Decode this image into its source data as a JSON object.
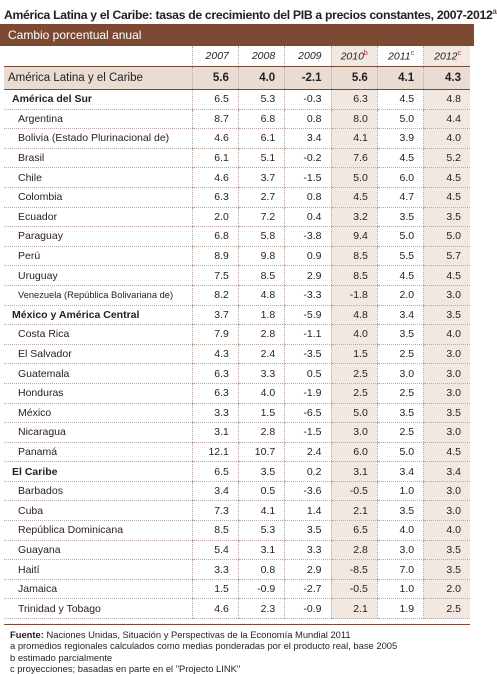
{
  "title": "América Latina y el Caribe: tasas de crecimiento del PIB a precios constantes, 2007-2012",
  "title_sup": "a",
  "banner": "Cambio porcentual anual",
  "columns": [
    {
      "year": "2007",
      "sup": ""
    },
    {
      "year": "2008",
      "sup": ""
    },
    {
      "year": "2009",
      "sup": ""
    },
    {
      "year": "2010",
      "sup": "b"
    },
    {
      "year": "2011",
      "sup": "c"
    },
    {
      "year": "2012",
      "sup": "c"
    }
  ],
  "rows": [
    {
      "kind": "total",
      "label": "América Latina y el Caribe",
      "values": [
        "5.6",
        "4.0",
        "-2.1",
        "5.6",
        "4.1",
        "4.3"
      ]
    },
    {
      "kind": "sub",
      "label": "América del Sur",
      "values": [
        "6.5",
        "5.3",
        "-0.3",
        "6.3",
        "4.5",
        "4.8"
      ]
    },
    {
      "kind": "row",
      "label": "Argentina",
      "values": [
        "8.7",
        "6.8",
        "0.8",
        "8.0",
        "5.0",
        "4.4"
      ]
    },
    {
      "kind": "row",
      "label": "Bolivia (Estado Plurinacional de)",
      "values": [
        "4.6",
        "6.1",
        "3.4",
        "4.1",
        "3.9",
        "4.0"
      ]
    },
    {
      "kind": "row",
      "label": "Brasil",
      "values": [
        "6.1",
        "5.1",
        "-0.2",
        "7.6",
        "4.5",
        "5.2"
      ]
    },
    {
      "kind": "row",
      "label": "Chile",
      "values": [
        "4.6",
        "3.7",
        "-1.5",
        "5.0",
        "6.0",
        "4.5"
      ]
    },
    {
      "kind": "row",
      "label": "Colombia",
      "values": [
        "6.3",
        "2.7",
        "0.8",
        "4.5",
        "4.7",
        "4.5"
      ]
    },
    {
      "kind": "row",
      "label": "Ecuador",
      "values": [
        "2.0",
        "7.2",
        "0.4",
        "3.2",
        "3.5",
        "3.5"
      ]
    },
    {
      "kind": "row",
      "label": "Paraguay",
      "values": [
        "6.8",
        "5.8",
        "-3.8",
        "9.4",
        "5.0",
        "5.0"
      ]
    },
    {
      "kind": "row",
      "label": "Perú",
      "values": [
        "8.9",
        "9.8",
        "0.9",
        "8.5",
        "5.5",
        "5.7"
      ]
    },
    {
      "kind": "row",
      "label": "Uruguay",
      "values": [
        "7.5",
        "8.5",
        "2.9",
        "8.5",
        "4.5",
        "4.5"
      ]
    },
    {
      "kind": "row",
      "label": "Venezuela (República Bolivariana de)",
      "values": [
        "8.2",
        "4.8",
        "-3.3",
        "-1.8",
        "2.0",
        "3.0"
      ],
      "small": true
    },
    {
      "kind": "sub",
      "label": "México y América Central",
      "values": [
        "3.7",
        "1.8",
        "-5.9",
        "4.8",
        "3.4",
        "3.5"
      ]
    },
    {
      "kind": "row",
      "label": "Costa Rica",
      "values": [
        "7.9",
        "2.8",
        "-1.1",
        "4.0",
        "3.5",
        "4.0"
      ]
    },
    {
      "kind": "row",
      "label": "El Salvador",
      "values": [
        "4.3",
        "2.4",
        "-3.5",
        "1.5",
        "2.5",
        "3.0"
      ]
    },
    {
      "kind": "row",
      "label": "Guatemala",
      "values": [
        "6.3",
        "3.3",
        "0.5",
        "2.5",
        "3.0",
        "3.0"
      ]
    },
    {
      "kind": "row",
      "label": "Honduras",
      "values": [
        "6.3",
        "4.0",
        "-1.9",
        "2.5",
        "2.5",
        "3.0"
      ]
    },
    {
      "kind": "row",
      "label": "México",
      "values": [
        "3.3",
        "1.5",
        "-6.5",
        "5.0",
        "3.5",
        "3.5"
      ]
    },
    {
      "kind": "row",
      "label": "Nicaragua",
      "values": [
        "3.1",
        "2.8",
        "-1.5",
        "3.0",
        "2.5",
        "3.0"
      ]
    },
    {
      "kind": "row",
      "label": "Panamá",
      "values": [
        "12.1",
        "10.7",
        "2.4",
        "6.0",
        "5.0",
        "4.5"
      ]
    },
    {
      "kind": "sub",
      "label": "El Caribe",
      "values": [
        "6.5",
        "3.5",
        "0.2",
        "3.1",
        "3.4",
        "3.4"
      ]
    },
    {
      "kind": "row",
      "label": "Barbados",
      "values": [
        "3.4",
        "0.5",
        "-3.6",
        "-0.5",
        "1.0",
        "3.0"
      ]
    },
    {
      "kind": "row",
      "label": "Cuba",
      "values": [
        "7.3",
        "4.1",
        "1.4",
        "2.1",
        "3.5",
        "3.0"
      ]
    },
    {
      "kind": "row",
      "label": "República Dominicana",
      "values": [
        "8.5",
        "5.3",
        "3.5",
        "6.5",
        "4.0",
        "4.0"
      ]
    },
    {
      "kind": "row",
      "label": "Guayana",
      "values": [
        "5.4",
        "3.1",
        "3.3",
        "2.8",
        "3.0",
        "3.5"
      ]
    },
    {
      "kind": "row",
      "label": "Haití",
      "values": [
        "3.3",
        "0.8",
        "2.9",
        "-8.5",
        "7.0",
        "3.5"
      ]
    },
    {
      "kind": "row",
      "label": "Jamaica",
      "values": [
        "1.5",
        "-0.9",
        "-2.7",
        "-0.5",
        "1.0",
        "2.0"
      ]
    },
    {
      "kind": "row",
      "label": "Trinidad y Tobago",
      "values": [
        "4.6",
        "2.3",
        "-0.9",
        "2.1",
        "1.9",
        "2.5"
      ]
    }
  ],
  "footnotes": {
    "source_label": "Fuente:",
    "source_text": " Naciones Unidas, Situación y Perspectivas de la Economía Mundial 2011",
    "a": "a  promedios regionales calculados como medias ponderadas por el producto real, base 2005",
    "b": "b  estimado parcialmente",
    "c": "c  proyecciones; basadas en parte en el \"Projecto LINK\""
  },
  "colors": {
    "banner": "#7c4a32",
    "total_row": "#e9dcd3",
    "shaded_column": "#f1e8e2",
    "superscript": "#b8282e"
  }
}
